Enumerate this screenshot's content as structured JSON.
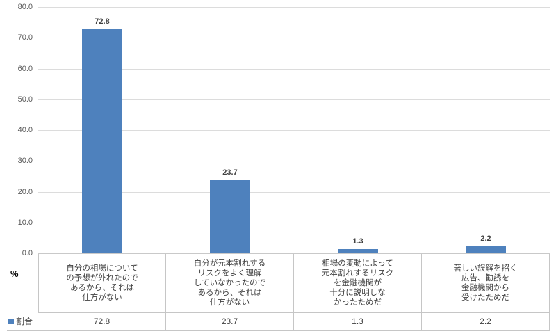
{
  "chart_data": {
    "type": "bar",
    "title": "",
    "xlabel": "",
    "ylabel": "%",
    "ylim": [
      0,
      80
    ],
    "ytick_step": 10,
    "yticks": [
      "80.0",
      "70.0",
      "60.0",
      "50.0",
      "40.0",
      "30.0",
      "20.0",
      "10.0",
      "0.0"
    ],
    "grid": true,
    "categories": [
      [
        "自分の相場について",
        "の予想が外れたので",
        "あるから、それは",
        "仕方がない"
      ],
      [
        "自分が元本割れする",
        "リスクをよく理解",
        "していなかったので",
        "あるから、それは",
        "仕方がない"
      ],
      [
        "相場の変動によって",
        "元本割れするリスク",
        "を金融機関が",
        "十分に説明しな",
        "かったためだ"
      ],
      [
        "著しい誤解を招く",
        "広告、勧誘を",
        "金融機関から",
        "受けたためだ"
      ]
    ],
    "series": [
      {
        "name": "割合",
        "values": [
          72.8,
          23.7,
          1.3,
          2.2
        ],
        "color": "#4e81bd"
      }
    ],
    "data_labels": [
      "72.8",
      "23.7",
      "1.3",
      "2.2"
    ],
    "table_row": {
      "header": "割合",
      "values": [
        "72.8",
        "23.7",
        "1.3",
        "2.2"
      ]
    },
    "legend_position": "table-left"
  },
  "colors": {
    "bar": "#4e81bd",
    "gridline": "#dcdcdc",
    "table_border": "#c6c6c6",
    "axis_text": "#595959",
    "label_text": "#404040"
  }
}
